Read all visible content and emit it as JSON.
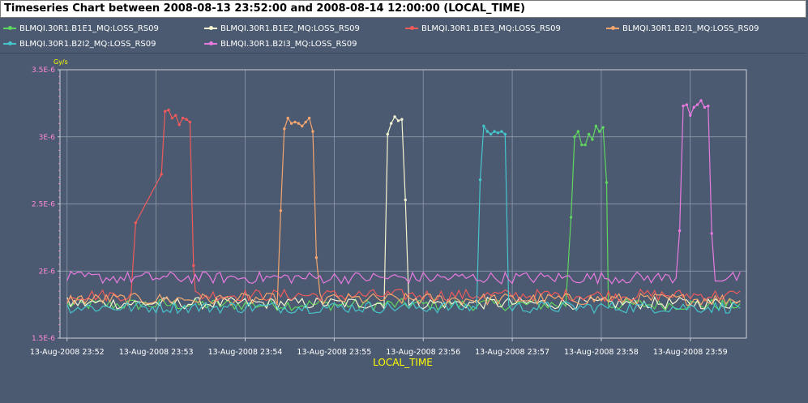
{
  "title": "Timeseries Chart between 2008-08-13 23:52:00 and 2008-08-14 12:00:00 (LOCAL_TIME)",
  "colors": {
    "background": "#4b5a70",
    "plot_background": "#4b5a70",
    "grid": "#9aa3b3",
    "axis": "#c8cdd6",
    "tick_label": "#ff8ad8",
    "axis_title": "#ffff00"
  },
  "chart_data": {
    "type": "line",
    "title": "Timeseries Chart between 2008-08-13 23:52:00 and 2008-08-14 12:00:00 (LOCAL_TIME)",
    "xlabel": "LOCAL_TIME",
    "ylabel": "Gy/s",
    "x_unit": "minutes after 2008-08-13 23:52",
    "xlim": [
      -0.08,
      7.63
    ],
    "ylim": [
      1.5e-06,
      3.5e-06
    ],
    "y_ticks": [
      {
        "value": 1.5e-06,
        "label": "1.5E-6"
      },
      {
        "value": 2e-06,
        "label": "2E-6"
      },
      {
        "value": 2.5e-06,
        "label": "2.5E-6"
      },
      {
        "value": 3e-06,
        "label": "3E-6"
      },
      {
        "value": 3.5e-06,
        "label": "3.5E-6"
      }
    ],
    "x_ticks": [
      {
        "value": 0,
        "label": "13-Aug-2008 23:52"
      },
      {
        "value": 1,
        "label": "13-Aug-2008 23:53"
      },
      {
        "value": 2,
        "label": "13-Aug-2008 23:54"
      },
      {
        "value": 3,
        "label": "13-Aug-2008 23:55"
      },
      {
        "value": 4,
        "label": "13-Aug-2008 23:56"
      },
      {
        "value": 5,
        "label": "13-Aug-2008 23:57"
      },
      {
        "value": 6,
        "label": "13-Aug-2008 23:58"
      },
      {
        "value": 7,
        "label": "13-Aug-2008 23:59"
      }
    ],
    "grid": true,
    "legend_position": "top",
    "series": [
      {
        "name": "BLMQI.30R1.B1E1_MQ:LOSS_RS09",
        "color": "#5fd65f",
        "baseline": 1.75e-06,
        "peaks": [
          [
            5.66,
            2.4e-06
          ],
          [
            5.7,
            3e-06
          ],
          [
            5.74,
            3.04e-06
          ],
          [
            5.78,
            2.94e-06
          ],
          [
            5.82,
            2.94e-06
          ],
          [
            5.86,
            3.02e-06
          ],
          [
            5.9,
            2.98e-06
          ],
          [
            5.94,
            3.08e-06
          ],
          [
            5.98,
            3.04e-06
          ],
          [
            6.02,
            3.07e-06
          ],
          [
            6.06,
            2.66e-06
          ]
        ]
      },
      {
        "name": "BLMQI.30R1.B1E2_MQ:LOSS_RS09",
        "color": "#f5f5d2",
        "baseline": 1.76e-06,
        "peaks": [
          [
            3.6,
            3.02e-06
          ],
          [
            3.64,
            3.1e-06
          ],
          [
            3.68,
            3.15e-06
          ],
          [
            3.72,
            3.12e-06
          ],
          [
            3.76,
            3.13e-06
          ],
          [
            3.8,
            2.53e-06
          ]
        ]
      },
      {
        "name": "BLMQI.30R1.B1E3_MQ:LOSS_RS09",
        "color": "#f05a5a",
        "baseline": 1.82e-06,
        "peaks": [
          [
            0.77,
            2.36e-06
          ],
          [
            1.06,
            2.72e-06
          ],
          [
            1.1,
            3.19e-06
          ],
          [
            1.14,
            3.2e-06
          ],
          [
            1.18,
            3.14e-06
          ],
          [
            1.22,
            3.16e-06
          ],
          [
            1.26,
            3.09e-06
          ],
          [
            1.3,
            3.14e-06
          ],
          [
            1.34,
            3.13e-06
          ],
          [
            1.38,
            3.11e-06
          ],
          [
            1.42,
            2.04e-06
          ]
        ]
      },
      {
        "name": "BLMQI.30R1.B2I1_MQ:LOSS_RS09",
        "color": "#f5a56e",
        "baseline": 1.79e-06,
        "peaks": [
          [
            2.4,
            2.45e-06
          ],
          [
            2.44,
            3.06e-06
          ],
          [
            2.48,
            3.14e-06
          ],
          [
            2.52,
            3.1e-06
          ],
          [
            2.56,
            3.11e-06
          ],
          [
            2.6,
            3.1e-06
          ],
          [
            2.64,
            3.08e-06
          ],
          [
            2.68,
            3.11e-06
          ],
          [
            2.72,
            3.14e-06
          ],
          [
            2.76,
            3.04e-06
          ],
          [
            2.8,
            2.1e-06
          ]
        ]
      },
      {
        "name": "BLMQI.30R1.B2I2_MQ:LOSS_RS09",
        "color": "#45c5cc",
        "baseline": 1.73e-06,
        "peaks": [
          [
            4.64,
            2.68e-06
          ],
          [
            4.68,
            3.08e-06
          ],
          [
            4.72,
            3.04e-06
          ],
          [
            4.76,
            3.02e-06
          ],
          [
            4.8,
            3.04e-06
          ],
          [
            4.84,
            3.03e-06
          ],
          [
            4.88,
            3.04e-06
          ],
          [
            4.92,
            3.02e-06
          ]
        ]
      },
      {
        "name": "BLMQI.30R1.B2I3_MQ:LOSS_RS09",
        "color": "#e87ae0",
        "baseline": 1.95e-06,
        "peaks": [
          [
            6.88,
            2.3e-06
          ],
          [
            6.92,
            3.23e-06
          ],
          [
            6.96,
            3.24e-06
          ],
          [
            7.0,
            3.16e-06
          ],
          [
            7.04,
            3.22e-06
          ],
          [
            7.08,
            3.24e-06
          ],
          [
            7.12,
            3.27e-06
          ],
          [
            7.16,
            3.22e-06
          ],
          [
            7.2,
            3.23e-06
          ],
          [
            7.24,
            2.28e-06
          ]
        ]
      }
    ]
  }
}
